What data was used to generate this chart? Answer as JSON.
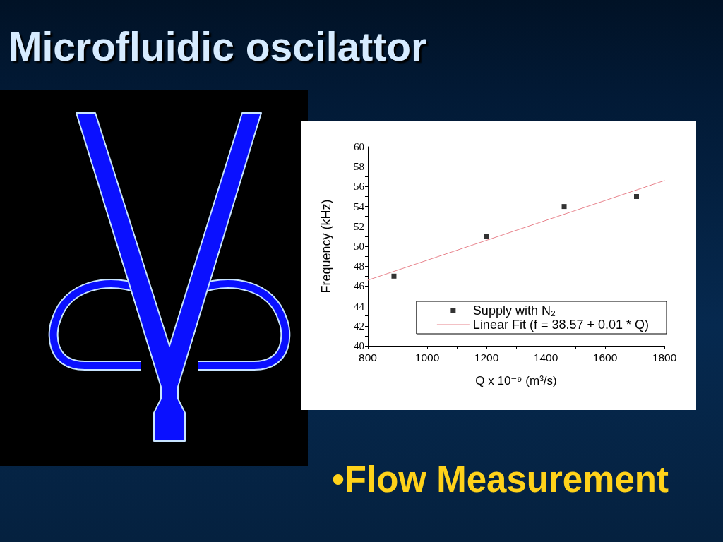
{
  "chart_data": {
    "type": "scatter",
    "title": "Microfluidic oscilattor",
    "xlabel": "Q x 10⁻⁹ (m³/s)",
    "ylabel": "Frequency (kHz)",
    "annotations": [
      "•Flow Measurement"
    ],
    "marker": "square",
    "series": [
      {
        "name": "Supply with N₂",
        "color": "#000000",
        "x": [
          888,
          1200,
          1462,
          1706
        ],
        "values": [
          47,
          51,
          54,
          55
        ]
      },
      {
        "name": "Linear Fit (f = 38.57 + 0.01 * Q)",
        "type": "line",
        "color": "#e8838c",
        "marker": "none",
        "line_style": "solid",
        "x": [
          800,
          1800
        ],
        "values": [
          46.6,
          56.6
        ]
      }
    ],
    "xlim": [
      800,
      1800
    ],
    "xticks": [
      800,
      {
        "value": 900,
        "label": null
      },
      1000,
      {
        "value": 1100,
        "label": null
      },
      1200,
      {
        "value": 1300,
        "label": null
      },
      1400,
      {
        "value": 1500,
        "label": null
      },
      1600,
      {
        "value": 1700,
        "label": null
      },
      1800
    ],
    "ylim": [
      40,
      60
    ],
    "yticks": [
      40,
      {
        "value": 41,
        "label": null
      },
      42,
      {
        "value": 43,
        "label": null
      },
      44,
      {
        "value": 45,
        "label": null
      },
      46,
      {
        "value": 47,
        "label": null
      },
      48,
      {
        "value": 49,
        "label": null
      },
      50,
      {
        "value": 51,
        "label": null
      },
      52,
      {
        "value": 53,
        "label": null
      },
      54,
      {
        "value": 55,
        "label": null
      },
      56,
      {
        "value": 57,
        "label": null
      },
      58,
      {
        "value": 59,
        "label": null
      },
      60
    ],
    "grid": false,
    "legend": "bottom right"
  }
}
